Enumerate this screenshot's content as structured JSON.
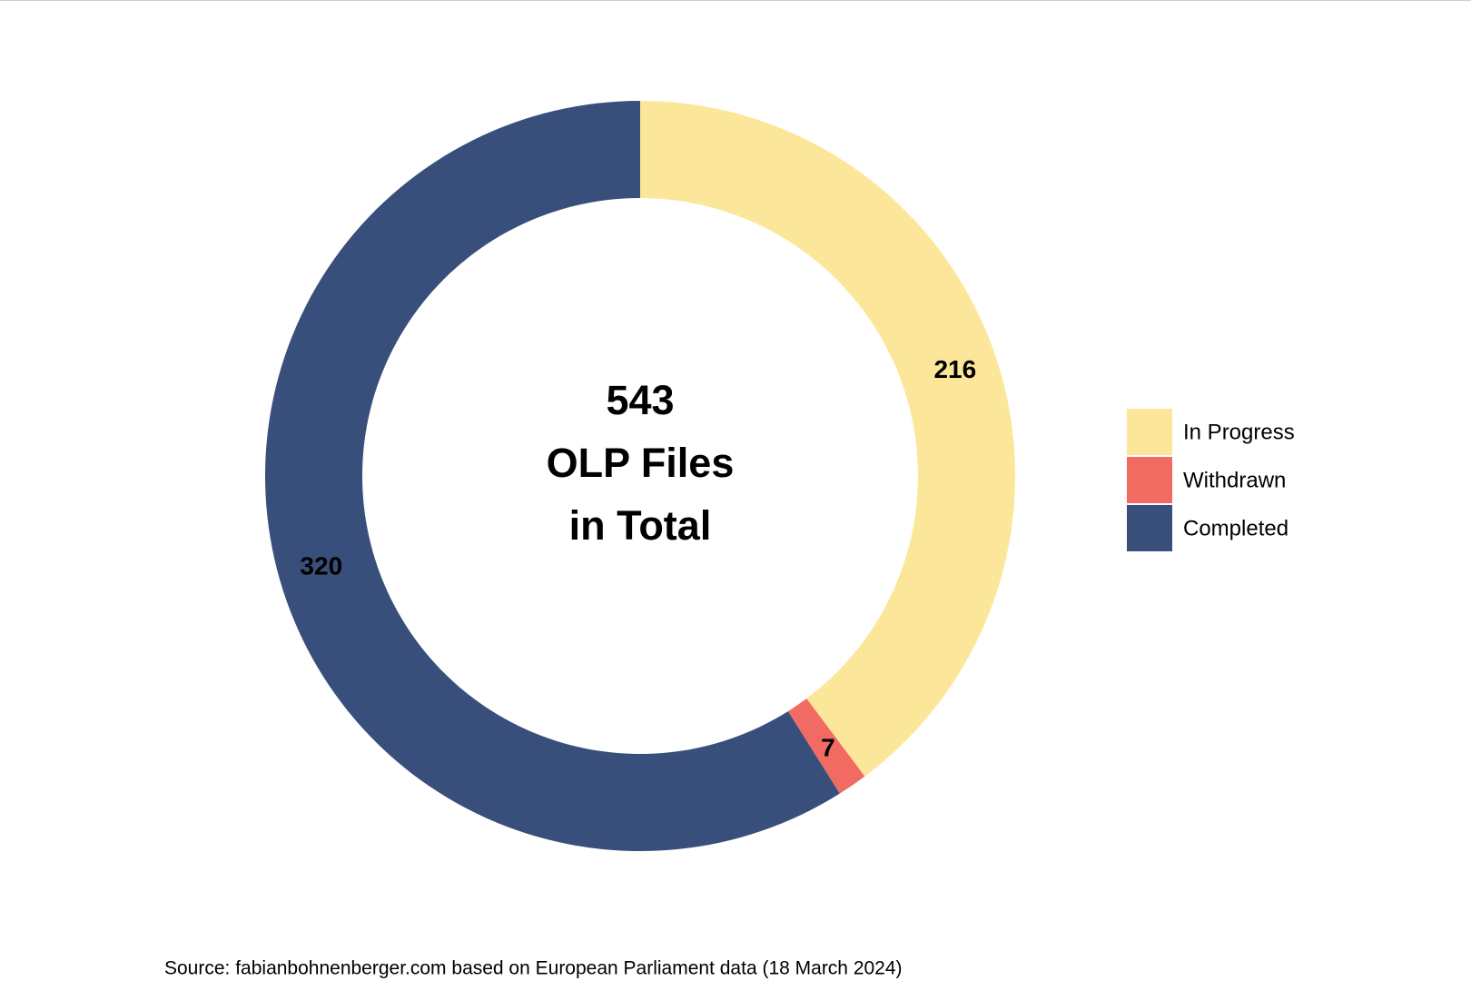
{
  "chart_data": {
    "type": "donut",
    "center_text": [
      "543",
      "OLP Files",
      "in Total"
    ],
    "categories": [
      "In Progress",
      "Withdrawn",
      "Completed"
    ],
    "values": [
      216,
      7,
      320
    ],
    "colors": [
      "#fce699",
      "#f26b63",
      "#394f7b"
    ],
    "source": "Source: fabianbohnenberger.com based on European Parliament data (18 March 2024)"
  }
}
